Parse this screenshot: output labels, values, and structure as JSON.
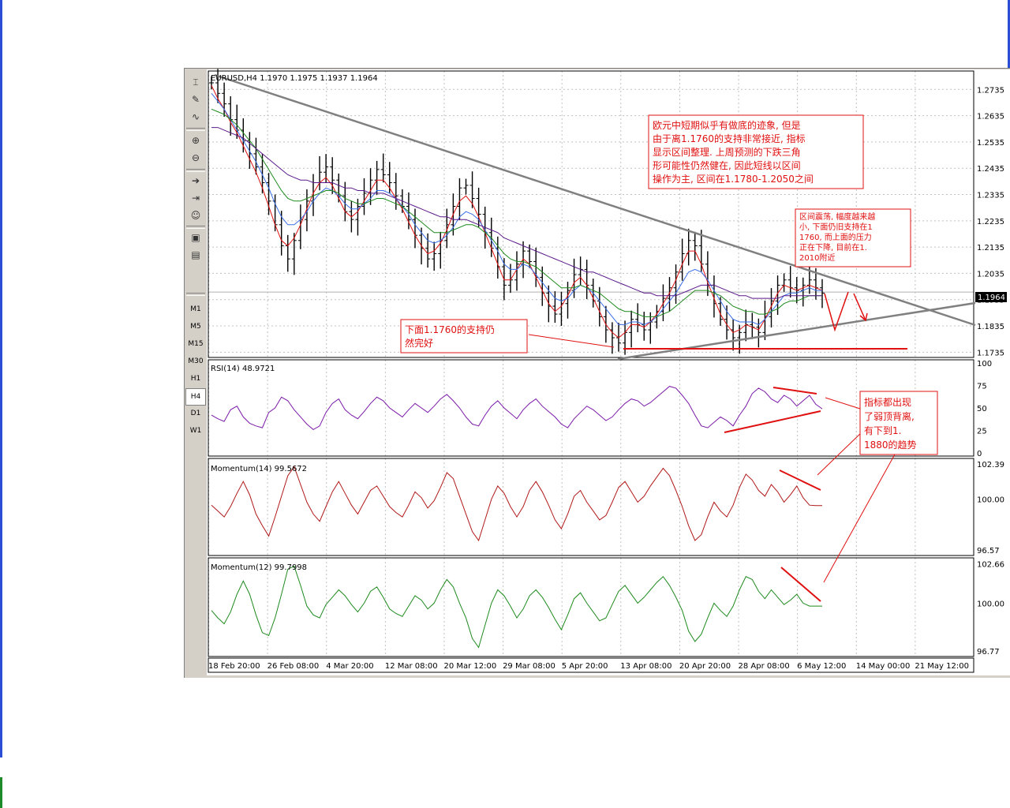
{
  "toolbar": {
    "tools": [
      "cursor-icon",
      "pencil-icon",
      "line-icon",
      "zoom-in-icon",
      "zoom-out-icon",
      "autoscroll-icon",
      "chart-shift-icon",
      "expert-icon",
      "template-icon",
      "properties-icon"
    ],
    "timeframes": [
      "M1",
      "M5",
      "M15",
      "M30",
      "H1",
      "H4",
      "D1",
      "W1"
    ],
    "active_timeframe": "H4"
  },
  "chart_data": {
    "type": "candlestick",
    "symbol_header": "EURUSD,H4  1.1970 1.1975 1.1937 1.1964",
    "current_price": "1.1964",
    "price_axis_ticks": [
      "1.2735",
      "1.2635",
      "1.2535",
      "1.2435",
      "1.2335",
      "1.2235",
      "1.2135",
      "1.2035",
      "1.1935",
      "1.1835",
      "1.1735"
    ],
    "price_range": [
      1.1715,
      1.2805
    ],
    "time_labels": [
      "18 Feb 20:00",
      "26 Feb 08:00",
      "4 Mar 20:00",
      "12 Mar 08:00",
      "20 Mar 12:00",
      "29 Mar 08:00",
      "5 Apr 20:00",
      "13 Apr 08:00",
      "20 Apr 20:00",
      "28 Apr 08:00",
      "6 May 12:00",
      "14 May 00:00",
      "21 May 12:00"
    ],
    "close_series": [
      1.276,
      1.272,
      1.268,
      1.262,
      1.258,
      1.254,
      1.249,
      1.244,
      1.238,
      1.231,
      1.222,
      1.214,
      1.209,
      1.216,
      1.224,
      1.231,
      1.238,
      1.242,
      1.244,
      1.239,
      1.233,
      1.227,
      1.224,
      1.229,
      1.234,
      1.239,
      1.243,
      1.241,
      1.238,
      1.233,
      1.229,
      1.224,
      1.218,
      1.213,
      1.209,
      1.211,
      1.216,
      1.222,
      1.229,
      1.236,
      1.237,
      1.232,
      1.226,
      1.219,
      1.213,
      1.206,
      1.199,
      1.201,
      1.207,
      1.212,
      1.208,
      1.202,
      1.196,
      1.191,
      1.188,
      1.192,
      1.197,
      1.203,
      1.205,
      1.199,
      1.193,
      1.187,
      1.182,
      1.179,
      1.177,
      1.181,
      1.186,
      1.184,
      1.182,
      1.185,
      1.189,
      1.194,
      1.198,
      1.204,
      1.211,
      1.216,
      1.214,
      1.207,
      1.199,
      1.192,
      1.186,
      1.182,
      1.179,
      1.181,
      1.184,
      1.183,
      1.181,
      1.187,
      1.193,
      1.199,
      1.201,
      1.198,
      1.197,
      1.199,
      1.201,
      1.198,
      1.196
    ],
    "ma_series": [
      {
        "color": "#e01010",
        "values": [
          1.275,
          1.27,
          1.266,
          1.261,
          1.257,
          1.252,
          1.247,
          1.242,
          1.236,
          1.229,
          1.222,
          1.216,
          1.214,
          1.217,
          1.222,
          1.228,
          1.234,
          1.238,
          1.24,
          1.237,
          1.232,
          1.227,
          1.225,
          1.227,
          1.231,
          1.235,
          1.239,
          1.239,
          1.236,
          1.232,
          1.228,
          1.223,
          1.218,
          1.214,
          1.211,
          1.212,
          1.215,
          1.22,
          1.226,
          1.231,
          1.233,
          1.23,
          1.225,
          1.219,
          1.213,
          1.207,
          1.201,
          1.201,
          1.205,
          1.209,
          1.207,
          1.202,
          1.197,
          1.192,
          1.189,
          1.191,
          1.195,
          1.2,
          1.202,
          1.199,
          1.194,
          1.189,
          1.184,
          1.181,
          1.179,
          1.181,
          1.184,
          1.184,
          1.183,
          1.185,
          1.188,
          1.192,
          1.196,
          1.201,
          1.207,
          1.212,
          1.212,
          1.207,
          1.2,
          1.194,
          1.188,
          1.184,
          1.181,
          1.182,
          1.184,
          1.183,
          1.182,
          1.186,
          1.191,
          1.196,
          1.199,
          1.198,
          1.197,
          1.198,
          1.199,
          1.198,
          1.197
        ]
      },
      {
        "color": "#3a6ee8",
        "values": [
          1.272,
          1.269,
          1.266,
          1.262,
          1.258,
          1.254,
          1.25,
          1.246,
          1.241,
          1.236,
          1.23,
          1.225,
          1.222,
          1.222,
          1.224,
          1.227,
          1.231,
          1.234,
          1.236,
          1.235,
          1.233,
          1.23,
          1.228,
          1.228,
          1.23,
          1.232,
          1.235,
          1.235,
          1.234,
          1.232,
          1.229,
          1.226,
          1.222,
          1.219,
          1.216,
          1.215,
          1.216,
          1.218,
          1.221,
          1.225,
          1.227,
          1.226,
          1.224,
          1.22,
          1.216,
          1.212,
          1.207,
          1.205,
          1.205,
          1.207,
          1.206,
          1.203,
          1.2,
          1.197,
          1.194,
          1.193,
          1.194,
          1.197,
          1.199,
          1.198,
          1.196,
          1.193,
          1.19,
          1.187,
          1.184,
          1.184,
          1.185,
          1.185,
          1.184,
          1.185,
          1.187,
          1.19,
          1.193,
          1.196,
          1.2,
          1.204,
          1.205,
          1.204,
          1.201,
          1.197,
          1.193,
          1.189,
          1.186,
          1.185,
          1.185,
          1.185,
          1.184,
          1.186,
          1.189,
          1.192,
          1.195,
          1.196,
          1.196,
          1.197,
          1.198,
          1.197,
          1.197
        ]
      },
      {
        "color": "#1e8a1e",
        "values": [
          1.266,
          1.265,
          1.264,
          1.262,
          1.26,
          1.257,
          1.254,
          1.251,
          1.247,
          1.243,
          1.239,
          1.235,
          1.232,
          1.231,
          1.231,
          1.232,
          1.233,
          1.234,
          1.235,
          1.235,
          1.234,
          1.232,
          1.231,
          1.23,
          1.23,
          1.231,
          1.232,
          1.232,
          1.231,
          1.23,
          1.229,
          1.227,
          1.225,
          1.223,
          1.221,
          1.219,
          1.219,
          1.219,
          1.22,
          1.221,
          1.222,
          1.222,
          1.221,
          1.219,
          1.217,
          1.214,
          1.211,
          1.209,
          1.208,
          1.208,
          1.207,
          1.206,
          1.204,
          1.202,
          1.2,
          1.198,
          1.198,
          1.198,
          1.199,
          1.198,
          1.197,
          1.196,
          1.194,
          1.192,
          1.19,
          1.189,
          1.189,
          1.188,
          1.187,
          1.187,
          1.187,
          1.188,
          1.189,
          1.191,
          1.193,
          1.195,
          1.197,
          1.197,
          1.197,
          1.196,
          1.195,
          1.193,
          1.191,
          1.19,
          1.189,
          1.189,
          1.188,
          1.188,
          1.189,
          1.19,
          1.192,
          1.193,
          1.193,
          1.194,
          1.195,
          1.195,
          1.195
        ]
      },
      {
        "color": "#5a1a8a",
        "values": [
          1.259,
          1.259,
          1.258,
          1.257,
          1.256,
          1.255,
          1.253,
          1.251,
          1.249,
          1.247,
          1.245,
          1.243,
          1.241,
          1.24,
          1.239,
          1.239,
          1.238,
          1.238,
          1.238,
          1.238,
          1.237,
          1.236,
          1.236,
          1.235,
          1.235,
          1.234,
          1.234,
          1.234,
          1.233,
          1.232,
          1.231,
          1.23,
          1.229,
          1.228,
          1.227,
          1.226,
          1.225,
          1.225,
          1.224,
          1.224,
          1.224,
          1.223,
          1.222,
          1.221,
          1.22,
          1.219,
          1.217,
          1.216,
          1.215,
          1.214,
          1.213,
          1.212,
          1.211,
          1.21,
          1.209,
          1.208,
          1.207,
          1.206,
          1.205,
          1.204,
          1.204,
          1.203,
          1.202,
          1.201,
          1.2,
          1.199,
          1.198,
          1.197,
          1.196,
          1.196,
          1.195,
          1.195,
          1.195,
          1.195,
          1.196,
          1.197,
          1.198,
          1.199,
          1.199,
          1.199,
          1.198,
          1.197,
          1.196,
          1.195,
          1.195,
          1.194,
          1.194,
          1.194,
          1.194,
          1.194,
          1.195,
          1.195,
          1.195,
          1.195,
          1.195,
          1.195,
          1.195
        ]
      }
    ],
    "rsi": {
      "label": "RSI(14)  48.9721",
      "ticks": [
        "100",
        "75",
        "50",
        "25",
        "0"
      ],
      "range": [
        0,
        100
      ],
      "color": "#7a1aa8",
      "values": [
        42,
        38,
        35,
        48,
        52,
        40,
        33,
        30,
        28,
        45,
        50,
        62,
        58,
        48,
        40,
        32,
        26,
        30,
        45,
        55,
        60,
        48,
        42,
        38,
        46,
        55,
        62,
        58,
        50,
        45,
        40,
        48,
        55,
        50,
        45,
        52,
        60,
        65,
        58,
        50,
        40,
        32,
        30,
        42,
        52,
        58,
        50,
        44,
        38,
        48,
        55,
        60,
        52,
        46,
        40,
        32,
        28,
        38,
        45,
        52,
        48,
        42,
        36,
        40,
        48,
        55,
        60,
        58,
        52,
        56,
        62,
        68,
        74,
        72,
        64,
        55,
        42,
        30,
        28,
        34,
        40,
        36,
        30,
        42,
        52,
        66,
        72,
        68,
        60,
        56,
        64,
        60,
        52,
        58,
        64,
        54,
        49
      ]
    },
    "momentum14": {
      "label": "Momentum(14)  99.5672",
      "ticks": [
        "102.39",
        "100.00",
        "96.57"
      ],
      "range": [
        96.4,
        102.55
      ],
      "color": "#b01818",
      "values": [
        99.6,
        99.2,
        98.8,
        99.5,
        100.4,
        101.2,
        100.3,
        99.0,
        98.2,
        97.5,
        98.8,
        100.2,
        101.6,
        102.2,
        101.0,
        99.8,
        99.0,
        98.5,
        99.5,
        100.5,
        101.2,
        100.4,
        99.6,
        99.0,
        99.8,
        100.6,
        100.9,
        100.2,
        99.5,
        99.1,
        98.8,
        99.6,
        100.5,
        100.1,
        99.4,
        99.9,
        100.8,
        101.8,
        101.4,
        100.2,
        99.0,
        97.8,
        97.2,
        98.6,
        100.0,
        100.9,
        100.4,
        99.5,
        98.8,
        99.5,
        100.6,
        101.2,
        100.5,
        99.6,
        98.6,
        98.0,
        99.0,
        100.2,
        100.6,
        99.8,
        99.2,
        98.6,
        98.9,
        99.8,
        100.8,
        101.2,
        100.5,
        99.8,
        100.2,
        100.9,
        101.5,
        102.1,
        101.6,
        100.6,
        99.5,
        98.2,
        97.2,
        97.6,
        98.8,
        99.8,
        99.2,
        98.8,
        99.6,
        100.8,
        101.7,
        101.3,
        100.6,
        100.2,
        101.0,
        100.5,
        99.8,
        100.3,
        100.9,
        100.1,
        99.6,
        99.57,
        99.57
      ]
    },
    "momentum12": {
      "label": "Momentum(12)  99.7998",
      "ticks": [
        "102.66",
        "100.00",
        "96.77"
      ],
      "range": [
        96.6,
        102.85
      ],
      "color": "#1e8a1e",
      "values": [
        99.5,
        99.0,
        98.6,
        99.4,
        100.6,
        101.5,
        100.6,
        99.2,
        98.0,
        97.8,
        99.0,
        100.6,
        102.3,
        102.5,
        101.2,
        99.8,
        99.2,
        99.0,
        99.9,
        100.4,
        100.9,
        100.5,
        99.9,
        99.4,
        100.0,
        100.8,
        101.1,
        100.4,
        99.6,
        99.3,
        99.1,
        99.8,
        100.5,
        100.2,
        99.6,
        100.0,
        100.9,
        101.6,
        101.1,
        100.0,
        99.0,
        97.6,
        97.0,
        98.5,
        100.0,
        100.9,
        100.5,
        99.8,
        99.0,
        99.6,
        100.5,
        100.9,
        100.4,
        99.7,
        98.9,
        98.2,
        99.2,
        100.3,
        100.7,
        100.0,
        99.4,
        98.8,
        99.0,
        99.9,
        100.8,
        101.2,
        100.6,
        100.0,
        100.4,
        100.9,
        101.4,
        101.8,
        101.2,
        100.4,
        99.5,
        98.1,
        97.4,
        97.9,
        99.0,
        100.0,
        99.5,
        99.1,
        99.8,
        100.9,
        101.8,
        101.6,
        100.8,
        100.3,
        100.9,
        100.4,
        99.9,
        100.2,
        100.6,
        100.0,
        99.8,
        99.8,
        99.8
      ]
    }
  },
  "annotations": {
    "box1": [
      "欧元中短期似乎有做底的迹象, 但是",
      "由于离1.1760的支持非常接近, 指标",
      "显示区间整理. 上周预测的下跌三角",
      "形可能性仍然健在, 因此短线以区间",
      "操作为主, 区间在1.1780-1.2050之间"
    ],
    "box2": [
      "区间震荡, 幅度越来越",
      "小, 下面仍旧支持在1",
      "1760, 而上面的压力",
      "正在下降, 目前在1.",
      "2010附近"
    ],
    "box3": [
      "下面1.1760的支持仍",
      "然完好"
    ],
    "box4": [
      "指标都出现",
      "了弱顶背离,",
      "有下到1.",
      "1880的趋势"
    ]
  }
}
